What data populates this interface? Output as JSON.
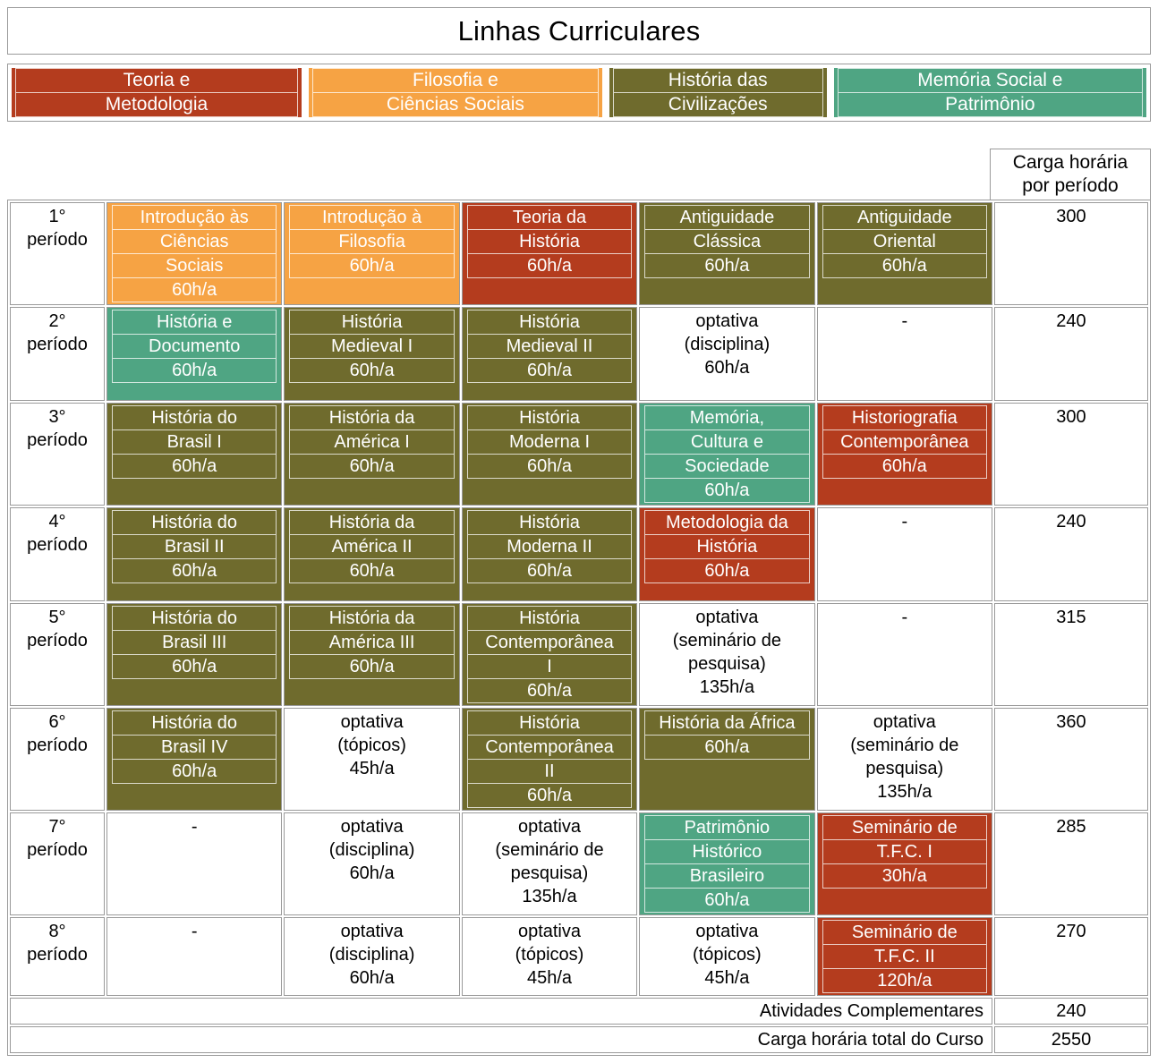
{
  "title": "Linhas Curriculares",
  "colors": {
    "teoria": "#b43c1e",
    "filosofia": "#f6a344",
    "historia": "#6f6b2d",
    "memoria": "#4fa583",
    "none": "#ffffff"
  },
  "legend": [
    {
      "category": "teoria",
      "lines": [
        "Teoria e",
        "Metodologia"
      ]
    },
    {
      "category": "filosofia",
      "lines": [
        "Filosofia e",
        "Ciências Sociais"
      ]
    },
    {
      "category": "historia",
      "lines": [
        "História das",
        "Civilizações"
      ]
    },
    {
      "category": "memoria",
      "lines": [
        "Memória Social e",
        "Patrimônio"
      ]
    }
  ],
  "carga_header": "Carga horária por período",
  "rows": [
    {
      "period": [
        "1°",
        "período"
      ],
      "carga": "300",
      "cells": [
        {
          "category": "filosofia",
          "lines": [
            "Introdução às",
            "Ciências",
            "Sociais",
            "60h/a"
          ]
        },
        {
          "category": "filosofia",
          "lines": [
            "Introdução à",
            "Filosofia",
            "60h/a"
          ]
        },
        {
          "category": "teoria",
          "lines": [
            "Teoria da",
            "História",
            "60h/a"
          ]
        },
        {
          "category": "historia",
          "lines": [
            "Antiguidade",
            "Clássica",
            "60h/a"
          ]
        },
        {
          "category": "historia",
          "lines": [
            "Antiguidade",
            "Oriental",
            "60h/a"
          ]
        }
      ]
    },
    {
      "period": [
        "2°",
        "período"
      ],
      "carga": "240",
      "cells": [
        {
          "category": "memoria",
          "lines": [
            "História e",
            "Documento",
            "60h/a"
          ]
        },
        {
          "category": "historia",
          "lines": [
            "História",
            "Medieval I",
            "60h/a"
          ]
        },
        {
          "category": "historia",
          "lines": [
            "História",
            "Medieval II",
            "60h/a"
          ]
        },
        {
          "category": "none",
          "lines": [
            "optativa",
            "(disciplina)",
            "60h/a"
          ]
        },
        {
          "category": "none",
          "lines": [
            "-"
          ]
        }
      ]
    },
    {
      "period": [
        "3°",
        "período"
      ],
      "carga": "300",
      "cells": [
        {
          "category": "historia",
          "lines": [
            "História do",
            "Brasil I",
            "60h/a"
          ]
        },
        {
          "category": "historia",
          "lines": [
            "História da",
            "América I",
            "60h/a"
          ]
        },
        {
          "category": "historia",
          "lines": [
            "História",
            "Moderna I",
            "60h/a"
          ]
        },
        {
          "category": "memoria",
          "lines": [
            "Memória,",
            "Cultura e",
            "Sociedade",
            "60h/a"
          ]
        },
        {
          "category": "teoria",
          "lines": [
            "Historiografia",
            "Contemporânea",
            "60h/a"
          ]
        }
      ]
    },
    {
      "period": [
        "4°",
        "período"
      ],
      "carga": "240",
      "cells": [
        {
          "category": "historia",
          "lines": [
            "História do",
            "Brasil II",
            "60h/a"
          ]
        },
        {
          "category": "historia",
          "lines": [
            "História da",
            "América II",
            "60h/a"
          ]
        },
        {
          "category": "historia",
          "lines": [
            "História",
            "Moderna II",
            "60h/a"
          ]
        },
        {
          "category": "teoria",
          "lines": [
            "Metodologia da",
            "História",
            "60h/a"
          ]
        },
        {
          "category": "none",
          "lines": [
            "-"
          ]
        }
      ]
    },
    {
      "period": [
        "5°",
        "período"
      ],
      "carga": "315",
      "cells": [
        {
          "category": "historia",
          "lines": [
            "História do",
            "Brasil III",
            "60h/a"
          ]
        },
        {
          "category": "historia",
          "lines": [
            "História da",
            "América III",
            "60h/a"
          ]
        },
        {
          "category": "historia",
          "lines": [
            "História",
            "Contemporânea",
            "I",
            "60h/a"
          ]
        },
        {
          "category": "none",
          "lines": [
            "optativa",
            "(seminário de",
            "pesquisa)",
            "135h/a"
          ]
        },
        {
          "category": "none",
          "lines": [
            "-"
          ]
        }
      ]
    },
    {
      "period": [
        "6°",
        "período"
      ],
      "carga": "360",
      "cells": [
        {
          "category": "historia",
          "lines": [
            "História do",
            "Brasil IV",
            "60h/a"
          ]
        },
        {
          "category": "none",
          "lines": [
            "optativa",
            "(tópicos)",
            "45h/a"
          ]
        },
        {
          "category": "historia",
          "lines": [
            "História",
            "Contemporânea",
            "II",
            "60h/a"
          ]
        },
        {
          "category": "historia",
          "lines": [
            "História da África",
            "60h/a"
          ]
        },
        {
          "category": "none",
          "lines": [
            "optativa",
            "(seminário de",
            "pesquisa)",
            "135h/a"
          ]
        }
      ]
    },
    {
      "period": [
        "7°",
        "período"
      ],
      "carga": "285",
      "cells": [
        {
          "category": "none",
          "lines": [
            "-"
          ]
        },
        {
          "category": "none",
          "lines": [
            "optativa",
            "(disciplina)",
            "60h/a"
          ]
        },
        {
          "category": "none",
          "lines": [
            "optativa",
            "(seminário de",
            "pesquisa)",
            "135h/a"
          ]
        },
        {
          "category": "memoria",
          "lines": [
            "Patrimônio",
            "Histórico",
            "Brasileiro",
            "60h/a"
          ]
        },
        {
          "category": "teoria",
          "lines": [
            "Seminário de",
            "T.F.C. I",
            "30h/a"
          ]
        }
      ]
    },
    {
      "period": [
        "8°",
        "período"
      ],
      "carga": "270",
      "cells": [
        {
          "category": "none",
          "lines": [
            "-"
          ]
        },
        {
          "category": "none",
          "lines": [
            "optativa",
            "(disciplina)",
            "60h/a"
          ]
        },
        {
          "category": "none",
          "lines": [
            "optativa",
            "(tópicos)",
            "45h/a"
          ]
        },
        {
          "category": "none",
          "lines": [
            "optativa",
            "(tópicos)",
            "45h/a"
          ]
        },
        {
          "category": "teoria",
          "lines": [
            "Seminário de",
            "T.F.C. II",
            "120h/a"
          ]
        }
      ]
    }
  ],
  "footer": [
    {
      "label": "Atividades Complementares",
      "value": "240"
    },
    {
      "label": "Carga horária total do Curso",
      "value": "2550"
    }
  ]
}
